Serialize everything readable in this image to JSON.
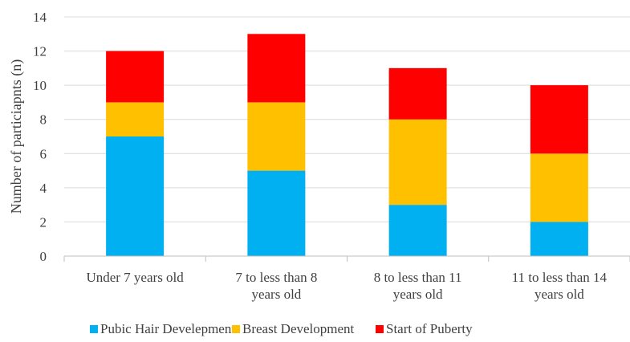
{
  "chart_data": {
    "type": "bar",
    "stacked": true,
    "title": "",
    "xlabel": "",
    "ylabel": "Number of particiapnts (n)",
    "ylim": [
      0,
      14
    ],
    "yticks": [
      "0",
      "2",
      "4",
      "6",
      "8",
      "10",
      "12",
      "14"
    ],
    "grid": true,
    "legend_position": "bottom",
    "categories": [
      [
        "Under 7 years old"
      ],
      [
        "7 to less than 8",
        "years old"
      ],
      [
        "8 to less than 11",
        "years old"
      ],
      [
        "11 to less than 14",
        "years old"
      ]
    ],
    "series": [
      {
        "name": "Pubic Hair Develepment",
        "color": "#00B0F0",
        "values": [
          7,
          5,
          3,
          2
        ]
      },
      {
        "name": "Breast Development",
        "color": "#FFC000",
        "values": [
          2,
          4,
          5,
          4
        ]
      },
      {
        "name": "Start of Puberty",
        "color": "#FF0000",
        "values": [
          3,
          4,
          3,
          4
        ]
      }
    ]
  }
}
